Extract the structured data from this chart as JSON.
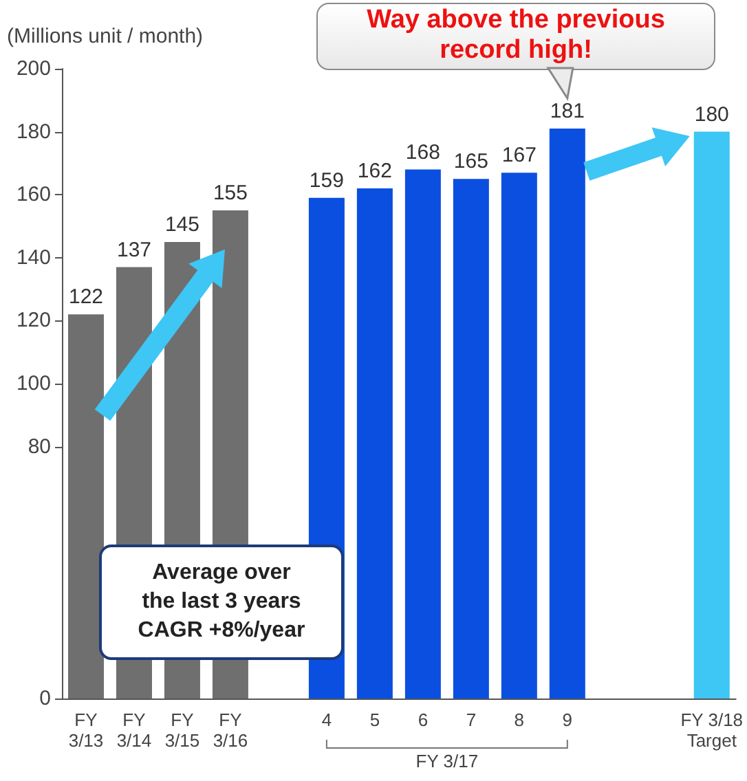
{
  "chart_data": {
    "type": "bar",
    "ylabel": "(Millions unit / month)",
    "categories": [
      "FY\n3/13",
      "FY\n3/14",
      "FY\n3/15",
      "FY\n3/16",
      null,
      "4",
      "5",
      "6",
      "7",
      "8",
      "9",
      null,
      null,
      "FY 3/18\nTarget"
    ],
    "values": [
      122,
      137,
      145,
      155,
      null,
      159,
      162,
      168,
      165,
      167,
      181,
      null,
      null,
      180
    ],
    "colors": [
      "#6f6f6f",
      "#6f6f6f",
      "#6f6f6f",
      "#6f6f6f",
      null,
      "#0a4fe0",
      "#0a4fe0",
      "#0a4fe0",
      "#0a4fe0",
      "#0a4fe0",
      "#0a4fe0",
      null,
      null,
      "#3ec6f4"
    ],
    "ylim": [
      0,
      200
    ],
    "yticks": [
      0,
      80,
      100,
      120,
      140,
      160,
      180,
      200
    ],
    "data_labels": true,
    "annotations": [
      "Way above the previous\nrecord high!",
      "Average over\nthe last 3 years\nCAGR +8%/year",
      "FY 3/17"
    ]
  }
}
